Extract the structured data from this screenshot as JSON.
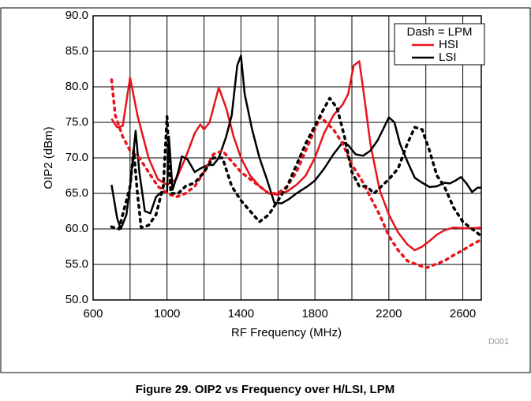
{
  "chart_data": {
    "type": "line",
    "caption": "Figure 29. OIP2 vs Frequency over H/LSI, LPM",
    "xlabel": "RF Frequency (MHz)",
    "ylabel": "OIP2 (dBm)",
    "note": "D001",
    "legend_title": "Dash = LPM",
    "legend": "upper right",
    "grid": true,
    "xlim": [
      600,
      2700
    ],
    "xticks": [
      600,
      1000,
      1400,
      1800,
      2200,
      2600
    ],
    "xgrid_minor": [
      800,
      1200,
      1600,
      2000,
      2400
    ],
    "ylim": [
      50,
      90
    ],
    "yticks": [
      {
        "value": 50,
        "label": "50.0"
      },
      {
        "value": 55,
        "label": "55.0"
      },
      {
        "value": 60,
        "label": "60.0"
      },
      {
        "value": 65,
        "label": "65.0"
      },
      {
        "value": 70,
        "label": "70.0"
      },
      {
        "value": 75,
        "label": "75.0"
      },
      {
        "value": 80,
        "label": "80.0"
      },
      {
        "value": 85,
        "label": "85.0"
      },
      {
        "value": 90,
        "label": "90.0"
      }
    ],
    "series": [
      {
        "name": "HSI",
        "color": "#e8141c",
        "dashed": false,
        "x": [
          700,
          730,
          760,
          800,
          840,
          900,
          950,
          1000,
          1050,
          1100,
          1150,
          1180,
          1200,
          1230,
          1280,
          1320,
          1360,
          1400,
          1450,
          1500,
          1550,
          1600,
          1650,
          1700,
          1750,
          1800,
          1850,
          1900,
          1950,
          1980,
          2010,
          2040,
          2070,
          2100,
          2150,
          2200,
          2250,
          2300,
          2340,
          2380,
          2420,
          2460,
          2500,
          2550,
          2600,
          2650,
          2700
        ],
        "values": [
          75.5,
          74.3,
          74.5,
          81.3,
          76,
          70,
          67,
          66.2,
          67,
          70,
          73.5,
          74.7,
          74,
          75,
          79.9,
          77,
          73,
          70,
          67.5,
          66,
          65,
          64.8,
          65.3,
          66.2,
          67.5,
          70,
          73.5,
          76,
          77.5,
          79,
          83,
          83.6,
          78,
          72,
          65.5,
          62,
          59.5,
          57.8,
          57,
          57.5,
          58.3,
          59.2,
          59.8,
          60.2,
          60.1,
          60.1,
          60.2
        ]
      },
      {
        "name": "LSI",
        "color": "#000000",
        "dashed": false,
        "x": [
          700,
          730,
          750,
          780,
          800,
          830,
          850,
          880,
          910,
          940,
          970,
          1000,
          1010,
          1030,
          1060,
          1080,
          1110,
          1150,
          1180,
          1220,
          1250,
          1280,
          1320,
          1350,
          1380,
          1400,
          1420,
          1460,
          1500,
          1540,
          1580,
          1620,
          1660,
          1700,
          1760,
          1800,
          1850,
          1900,
          1950,
          1980,
          2020,
          2060,
          2100,
          2140,
          2200,
          2230,
          2260,
          2300,
          2340,
          2380,
          2420,
          2460,
          2500,
          2530,
          2560,
          2590,
          2620,
          2650,
          2680,
          2700
        ],
        "values": [
          66.2,
          61.5,
          60,
          62,
          66,
          73.8,
          68,
          62.5,
          62.2,
          64.5,
          65.2,
          65.2,
          73,
          65.5,
          68,
          70.2,
          69.8,
          68,
          68.5,
          69,
          69,
          70,
          73,
          76,
          83,
          84.4,
          79,
          74,
          70,
          67,
          63.7,
          63.6,
          64.2,
          65,
          66,
          66.8,
          68.5,
          70.5,
          72.2,
          71.8,
          70.5,
          70.3,
          71,
          72.5,
          75.7,
          75,
          72,
          69.5,
          67.2,
          66.5,
          65.9,
          66,
          66.5,
          66.4,
          66.8,
          67.3,
          66.4,
          65.2,
          65.8,
          65.8
        ]
      },
      {
        "name": "HSI",
        "color": "#e8141c",
        "dashed": true,
        "x": [
          700,
          720,
          760,
          800,
          850,
          900,
          950,
          1000,
          1050,
          1100,
          1150,
          1200,
          1250,
          1300,
          1350,
          1400,
          1450,
          1500,
          1550,
          1600,
          1650,
          1700,
          1750,
          1800,
          1830,
          1860,
          1900,
          1950,
          2000,
          2050,
          2100,
          2150,
          2200,
          2250,
          2300,
          2350,
          2400,
          2450,
          2500,
          2550,
          2600,
          2650,
          2700
        ],
        "values": [
          81,
          76,
          73,
          71,
          70,
          68,
          66,
          65,
          64.5,
          65,
          66,
          68,
          70.5,
          71,
          69.5,
          68,
          67,
          66,
          65,
          65,
          66,
          68,
          71,
          74,
          75.8,
          75,
          74,
          72,
          69,
          67,
          64.5,
          62,
          59,
          57,
          55.5,
          55,
          54.5,
          55,
          55.5,
          56.3,
          57,
          57.8,
          58.5
        ]
      },
      {
        "name": "LSI",
        "color": "#000000",
        "dashed": true,
        "x": [
          700,
          740,
          760,
          800,
          820,
          840,
          860,
          900,
          940,
          980,
          1000,
          1020,
          1060,
          1100,
          1150,
          1200,
          1250,
          1300,
          1350,
          1400,
          1450,
          1500,
          1550,
          1600,
          1650,
          1700,
          1750,
          1800,
          1840,
          1880,
          1920,
          1960,
          2000,
          2040,
          2080,
          2120,
          2160,
          2200,
          2250,
          2300,
          2340,
          2380,
          2420,
          2460,
          2500,
          2550,
          2600,
          2650,
          2700
        ],
        "values": [
          60.3,
          60,
          62,
          66,
          71,
          65,
          60.2,
          60.5,
          62,
          66,
          75.8,
          65,
          65,
          66,
          66.5,
          68,
          70,
          70,
          66,
          64,
          62.5,
          61,
          62,
          64,
          66,
          69,
          72,
          74.5,
          76.5,
          78.4,
          77,
          73,
          68,
          66,
          66,
          65,
          66,
          67,
          68.5,
          72,
          74.3,
          74,
          71,
          67.5,
          66,
          63,
          61,
          60,
          59
        ]
      }
    ]
  }
}
